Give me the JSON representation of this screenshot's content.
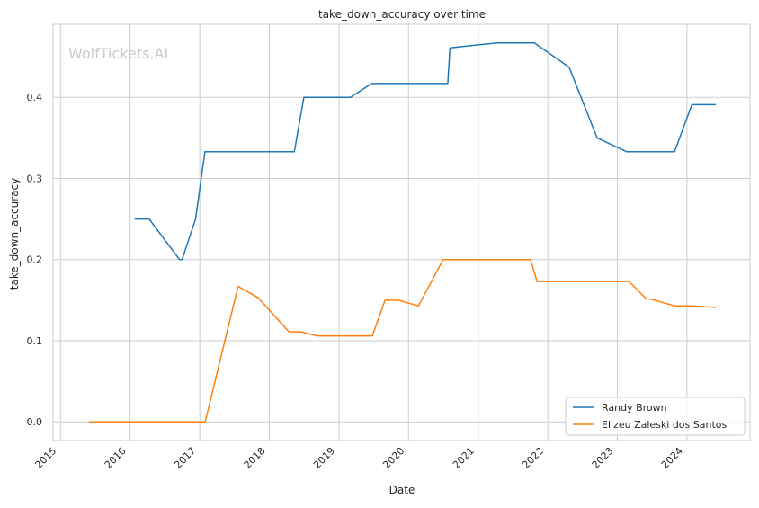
{
  "chart_data": {
    "type": "line",
    "title": "take_down_accuracy over time",
    "xlabel": "Date",
    "ylabel": "take_down_accuracy",
    "watermark": "WolfTickets.AI",
    "xlim": [
      "2014-11-23",
      "2024-11-27"
    ],
    "ylim": [
      -0.023,
      0.49
    ],
    "x_ticks": [
      "2015",
      "2016",
      "2017",
      "2018",
      "2019",
      "2020",
      "2021",
      "2022",
      "2023",
      "2024"
    ],
    "y_ticks": [
      "0.0",
      "0.1",
      "0.2",
      "0.3",
      "0.4"
    ],
    "grid": true,
    "legend_position": "lower-right",
    "series": [
      {
        "name": "Randy Brown",
        "color": "#1f77b4",
        "points": [
          [
            "2016-01-25",
            0.25
          ],
          [
            "2016-04-10",
            0.25
          ],
          [
            "2016-09-17",
            0.2
          ],
          [
            "2016-09-30",
            0.2
          ],
          [
            "2016-12-10",
            0.25
          ],
          [
            "2017-01-28",
            0.333
          ],
          [
            "2018-05-12",
            0.333
          ],
          [
            "2018-07-01",
            0.4
          ],
          [
            "2019-03-02",
            0.4
          ],
          [
            "2019-06-22",
            0.417
          ],
          [
            "2020-07-25",
            0.417
          ],
          [
            "2020-08-06",
            0.461
          ],
          [
            "2021-04-10",
            0.467
          ],
          [
            "2021-10-23",
            0.467
          ],
          [
            "2022-04-23",
            0.437
          ],
          [
            "2022-09-17",
            0.35
          ],
          [
            "2023-02-18",
            0.333
          ],
          [
            "2023-10-28",
            0.333
          ],
          [
            "2024-01-27",
            0.391
          ],
          [
            "2024-06-01",
            0.391
          ]
        ]
      },
      {
        "name": "Elizeu Zaleski dos Santos",
        "color": "#ff7f0e",
        "points": [
          [
            "2015-05-30",
            0.0
          ],
          [
            "2017-01-29",
            0.0
          ],
          [
            "2017-07-21",
            0.167
          ],
          [
            "2017-11-04",
            0.153
          ],
          [
            "2018-04-14",
            0.111
          ],
          [
            "2018-06-15",
            0.111
          ],
          [
            "2018-09-10",
            0.106
          ],
          [
            "2019-06-25",
            0.106
          ],
          [
            "2019-08-31",
            0.15
          ],
          [
            "2019-11-09",
            0.15
          ],
          [
            "2020-02-22",
            0.143
          ],
          [
            "2020-07-01",
            0.2
          ],
          [
            "2021-10-02",
            0.2
          ],
          [
            "2021-11-06",
            0.173
          ],
          [
            "2023-03-04",
            0.173
          ],
          [
            "2023-06-01",
            0.152
          ],
          [
            "2023-07-01",
            0.151
          ],
          [
            "2023-10-28",
            0.143
          ],
          [
            "2024-01-27",
            0.143
          ],
          [
            "2024-06-01",
            0.141
          ]
        ]
      }
    ]
  }
}
